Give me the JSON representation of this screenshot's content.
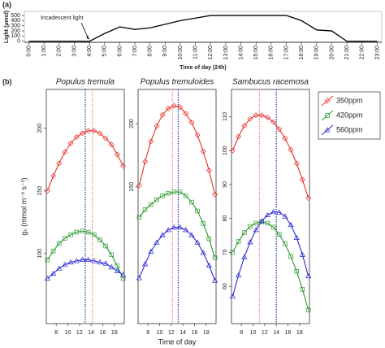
{
  "chart_data": [
    {
      "type": "line",
      "panel_label": "(a)",
      "ylabel": "Light (µmol)",
      "xlabel": "Time of day (24h)",
      "annotation": "Incadescent light",
      "x": [
        0,
        1,
        2,
        3,
        4,
        5,
        6,
        7,
        8,
        9,
        10,
        11,
        12,
        13,
        14,
        15,
        16,
        17,
        18,
        19,
        20,
        21,
        22,
        23
      ],
      "series": [
        {
          "color": "#000000",
          "values": [
            0,
            0,
            0,
            0,
            0,
            150,
            280,
            230,
            260,
            330,
            400,
            450,
            500,
            500,
            500,
            500,
            500,
            500,
            400,
            220,
            200,
            0,
            0,
            0
          ]
        }
      ],
      "xlim": [
        -0.3,
        23.3
      ],
      "ylim": [
        -20,
        580
      ],
      "yticks": [
        0,
        100,
        200,
        300,
        400,
        500
      ],
      "xticks": [
        {
          "value": 0,
          "label": "0:00"
        },
        {
          "value": 1,
          "label": "1:00"
        },
        {
          "value": 2,
          "label": "2:00"
        },
        {
          "value": 3,
          "label": "3:00"
        },
        {
          "value": 4,
          "label": "4:00"
        },
        {
          "value": 5,
          "label": "5:00"
        },
        {
          "value": 6,
          "label": "6:00"
        },
        {
          "value": 7,
          "label": "7:00"
        },
        {
          "value": 8,
          "label": "8:00"
        },
        {
          "value": 9,
          "label": "9:00"
        },
        {
          "value": 10,
          "label": "10:00"
        },
        {
          "value": 11,
          "label": "11:00"
        },
        {
          "value": 12,
          "label": "12:00"
        },
        {
          "value": 13,
          "label": "13:00"
        },
        {
          "value": 14,
          "label": "14:00"
        },
        {
          "value": 15,
          "label": "15:00"
        },
        {
          "value": 16,
          "label": "16:00"
        },
        {
          "value": 17,
          "label": "17:00"
        },
        {
          "value": 18,
          "label": "18:00"
        },
        {
          "value": 19,
          "label": "19:00"
        },
        {
          "value": 20,
          "label": "20:00"
        },
        {
          "value": 21,
          "label": "21:00"
        },
        {
          "value": 22,
          "label": "22:00"
        },
        {
          "value": 23,
          "label": "23:00"
        }
      ]
    },
    {
      "type": "line",
      "panel_label": "(b)",
      "title": "Populus tremula",
      "ylabel": "gₛ (mmol m⁻² s⁻¹)",
      "x": [
        6.5,
        7.5,
        8.5,
        9.5,
        10.5,
        11.5,
        12.5,
        13.5,
        14.5,
        15.5,
        16.5,
        17.5,
        18.5,
        19.5
      ],
      "xlim": [
        6.3,
        19.7
      ],
      "ylim": [
        44,
        231
      ],
      "xticks": [
        8,
        10,
        12,
        14,
        16,
        18
      ],
      "yticks": [
        100,
        150,
        200
      ],
      "vlines": [
        {
          "x": 14.2,
          "color": "#f08080"
        },
        {
          "x": 13,
          "color": "#1a2f9a"
        }
      ],
      "series": [
        {
          "color": "#e8312b",
          "marker": "diamond",
          "values": [
            150,
            162,
            172,
            181,
            188,
            193,
            196,
            198,
            198,
            196,
            192,
            187,
            179,
            170
          ]
        },
        {
          "color": "#2e9a2e",
          "marker": "square",
          "values": [
            95,
            102,
            108,
            112,
            115,
            117,
            118,
            117,
            115,
            111,
            106,
            99,
            90,
            80
          ]
        },
        {
          "color": "#2a2ad8",
          "marker": "triangle",
          "values": [
            80,
            84,
            88,
            91,
            93,
            94,
            95,
            95,
            94,
            93,
            92,
            89,
            86,
            83
          ]
        }
      ]
    },
    {
      "type": "line",
      "title": "Populus tremuloides",
      "xlabel": "Time of day",
      "x": [
        6.5,
        7.5,
        8.5,
        9.5,
        10.5,
        11.5,
        12.5,
        13.5,
        14.5,
        15.5,
        16.5,
        17.5,
        18.5,
        19.5
      ],
      "xlim": [
        6.3,
        19.7
      ],
      "ylim": [
        42,
        227
      ],
      "xticks": [
        8,
        10,
        12,
        14,
        16,
        18
      ],
      "yticks": [
        150,
        200
      ],
      "vlines": [
        {
          "x": 12.2,
          "color": "#f08080"
        },
        {
          "x": 13.2,
          "color": "#1a2f9a"
        }
      ],
      "series": [
        {
          "color": "#e8312b",
          "marker": "diamond",
          "values": [
            151,
            170,
            186,
            198,
            207,
            212,
            214,
            213,
            208,
            201,
            191,
            178,
            163,
            144
          ]
        },
        {
          "color": "#2e9a2e",
          "marker": "square",
          "values": [
            126,
            132,
            136,
            140,
            143,
            145,
            146,
            146,
            143,
            138,
            131,
            121,
            109,
            94
          ]
        },
        {
          "color": "#2a2ad8",
          "marker": "triangle",
          "values": [
            78,
            89,
            99,
            106,
            112,
            116,
            118,
            118,
            116,
            112,
            106,
            98,
            88,
            76
          ]
        }
      ]
    },
    {
      "type": "line",
      "title": "Sambucus racemosa",
      "x": [
        6.5,
        7.5,
        8.5,
        9.5,
        10.5,
        11.5,
        12.5,
        13.5,
        14.5,
        15.5,
        16.5,
        17.5,
        18.5,
        19.5
      ],
      "xlim": [
        6.3,
        19.7
      ],
      "ylim": [
        49,
        118
      ],
      "xticks": [
        8,
        10,
        12,
        14,
        16,
        18
      ],
      "yticks": [
        60,
        70,
        80,
        90,
        100,
        110
      ],
      "vlines": [
        {
          "x": 11.1,
          "color": "#f08080"
        },
        {
          "x": 14,
          "color": "#1a2f9a"
        }
      ],
      "series": [
        {
          "name": "350ppm",
          "color": "#e8312b",
          "marker": "diamond",
          "values": [
            100,
            104.1,
            107.3,
            109.3,
            110.4,
            110.4,
            109.7,
            108.4,
            106.3,
            103.6,
            100.2,
            96.2,
            91.4,
            86
          ]
        },
        {
          "name": "420ppm",
          "color": "#2e9a2e",
          "marker": "square",
          "values": [
            70,
            73.2,
            75.8,
            77.6,
            78.6,
            79,
            78.6,
            77.4,
            75.3,
            72.5,
            68.8,
            64.4,
            59.1,
            53
          ]
        },
        {
          "name": "560ppm",
          "color": "#2a2ad8",
          "marker": "triangle",
          "values": [
            57,
            63.2,
            68.6,
            73,
            76.6,
            79.2,
            81,
            81.9,
            81.8,
            80.6,
            78.1,
            74.3,
            69.3,
            63
          ]
        }
      ]
    }
  ]
}
